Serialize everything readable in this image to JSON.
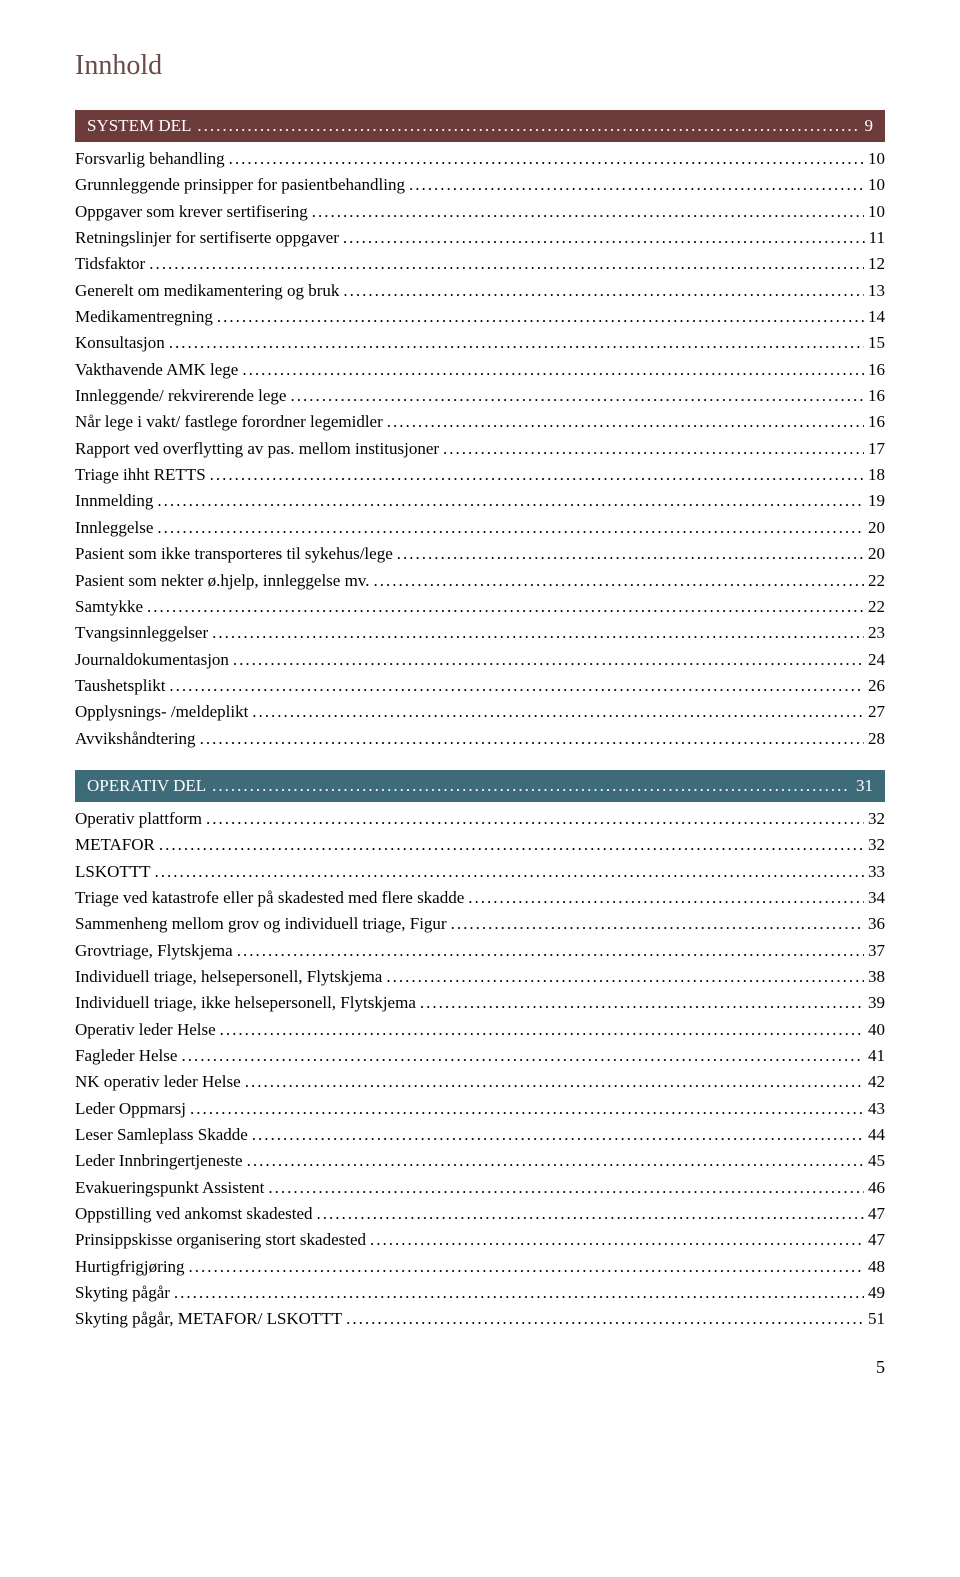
{
  "title": "Innhold",
  "page_number": "5",
  "dot_fill": "...............................................................................................................................................................................................................................",
  "colors": {
    "title": "#6d4a4a",
    "system_bar_bg": "#6e3b3b",
    "operative_bar_bg": "#3e6b7a",
    "bar_text": "#ffffff",
    "body_text": "#000000"
  },
  "sections": [
    {
      "key": "system",
      "label": "SYSTEM DEL",
      "page": "9",
      "bar_color": "#6e3b3b",
      "entries": [
        {
          "label": "Forsvarlig behandling",
          "page": "10"
        },
        {
          "label": "Grunnleggende prinsipper for pasientbehandling",
          "page": "10"
        },
        {
          "label": "Oppgaver som krever sertifisering",
          "page": "10"
        },
        {
          "label": "Retningslinjer for sertifiserte oppgaver",
          "page": "11"
        },
        {
          "label": "Tidsfaktor",
          "page": "12"
        },
        {
          "label": "Generelt om medikamentering og bruk",
          "page": "13"
        },
        {
          "label": "Medikamentregning",
          "page": "14"
        },
        {
          "label": "Konsultasjon",
          "page": "15"
        },
        {
          "label": "Vakthavende AMK lege",
          "page": "16"
        },
        {
          "label": "Innleggende/ rekvirerende lege",
          "page": "16"
        },
        {
          "label": "Når lege i vakt/ fastlege forordner legemidler",
          "page": "16"
        },
        {
          "label": "Rapport ved overflytting av pas. mellom institusjoner",
          "page": "17"
        },
        {
          "label": "Triage ihht RETTS",
          "page": "18"
        },
        {
          "label": "Innmelding",
          "page": "19"
        },
        {
          "label": "Innleggelse",
          "page": "20"
        },
        {
          "label": "Pasient som ikke transporteres til sykehus/lege",
          "page": "20"
        },
        {
          "label": "Pasient som nekter ø.hjelp, innleggelse mv.",
          "page": "22"
        },
        {
          "label": "Samtykke",
          "page": "22"
        },
        {
          "label": "Tvangsinnleggelser",
          "page": "23"
        },
        {
          "label": "Journaldokumentasjon",
          "page": "24"
        },
        {
          "label": "Taushetsplikt",
          "page": "26"
        },
        {
          "label": "Opplysnings- /meldeplikt",
          "page": "27"
        },
        {
          "label": "Avvikshåndtering",
          "page": "28"
        }
      ]
    },
    {
      "key": "operative",
      "label": "OPERATIV DEL",
      "page": "31",
      "bar_color": "#3e6b7a",
      "entries": [
        {
          "label": "Operativ plattform",
          "page": "32"
        },
        {
          "label": "METAFOR",
          "page": "32"
        },
        {
          "label": "LSKOTTT",
          "page": "33"
        },
        {
          "label": "Triage ved katastrofe eller på skadested med flere skadde",
          "page": "34"
        },
        {
          "label": "Sammenheng mellom grov og individuell triage, Figur",
          "page": "36"
        },
        {
          "label": "Grovtriage, Flytskjema",
          "page": "37"
        },
        {
          "label": "Individuell triage, helsepersonell, Flytskjema",
          "page": "38"
        },
        {
          "label": "Individuell triage, ikke helsepersonell, Flytskjema",
          "page": "39"
        },
        {
          "label": "Operativ leder Helse",
          "page": "40"
        },
        {
          "label": "Fagleder Helse",
          "page": "41"
        },
        {
          "label": "NK operativ leder Helse",
          "page": "42"
        },
        {
          "label": "Leder Oppmarsj",
          "page": "43"
        },
        {
          "label": "Leser Samleplass Skadde",
          "page": "44"
        },
        {
          "label": "Leder Innbringertjeneste",
          "page": "45"
        },
        {
          "label": "Evakueringspunkt Assistent",
          "page": "46"
        },
        {
          "label": "Oppstilling ved ankomst skadested",
          "page": "47"
        },
        {
          "label": "Prinsippskisse organisering stort skadested",
          "page": "47"
        },
        {
          "label": "Hurtigfrigjøring",
          "page": "48"
        },
        {
          "label": "Skyting pågår",
          "page": "49"
        },
        {
          "label": "Skyting pågår, METAFOR/ LSKOTTT",
          "page": "51"
        }
      ]
    }
  ]
}
